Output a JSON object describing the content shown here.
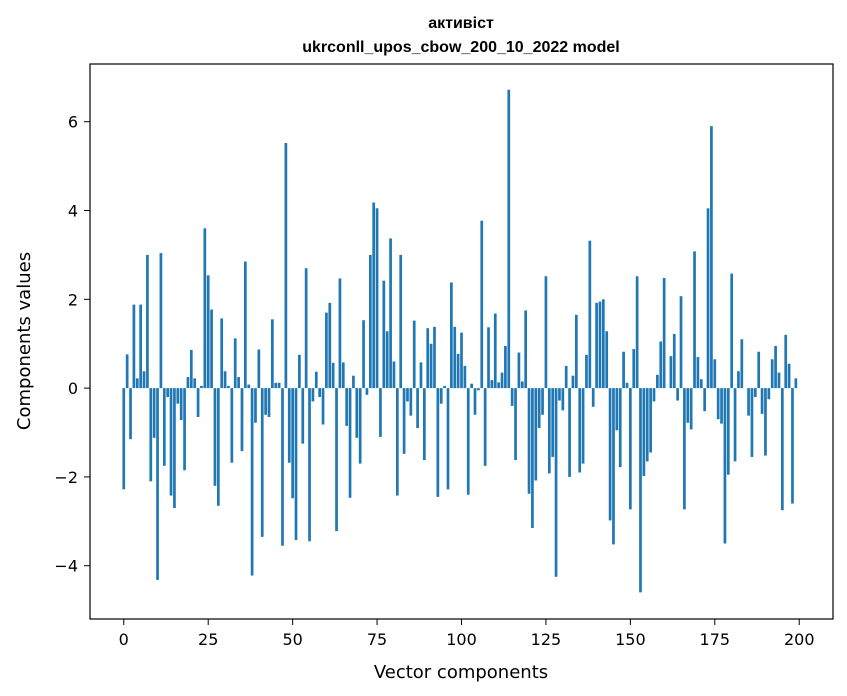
{
  "chart_data": {
    "type": "bar",
    "title": "активіст",
    "subtitle": "ukrconll_upos_cbow_200_10_2022 model",
    "xlabel": "Vector components",
    "ylabel": "Components values",
    "xlim": [
      -10,
      210
    ],
    "ylim": [
      -5.2,
      7.3
    ],
    "xticks": [
      0,
      25,
      50,
      75,
      100,
      125,
      150,
      175,
      200
    ],
    "yticks": [
      -4,
      -2,
      0,
      2,
      4,
      6
    ],
    "ytick_labels": [
      "−4",
      "−2",
      "0",
      "2",
      "4",
      "6"
    ],
    "grid": false,
    "bar_color": "#1f77b4",
    "values": [
      -2.28,
      0.76,
      -1.15,
      1.88,
      0.22,
      1.88,
      0.38,
      3.0,
      -2.1,
      -1.12,
      -4.32,
      3.04,
      -1.75,
      -0.2,
      -2.42,
      -2.7,
      -0.35,
      -0.72,
      -1.85,
      0.25,
      0.86,
      0.22,
      -0.65,
      0.05,
      3.6,
      2.54,
      1.77,
      -2.2,
      -2.65,
      1.57,
      0.38,
      0.05,
      -1.68,
      1.12,
      0.25,
      -1.42,
      2.85,
      0.08,
      -4.22,
      -0.78,
      0.87,
      -3.35,
      -0.6,
      -0.65,
      1.55,
      0.12,
      0.12,
      -3.55,
      5.52,
      -1.68,
      -2.48,
      -3.42,
      0.75,
      -1.25,
      2.7,
      -3.45,
      -0.3,
      0.37,
      -0.2,
      -0.82,
      1.7,
      1.92,
      0.57,
      -3.22,
      2.47,
      0.58,
      -0.85,
      -2.47,
      0.28,
      -1.12,
      -1.7,
      1.53,
      -0.15,
      3.0,
      4.18,
      4.05,
      -1.1,
      2.42,
      1.28,
      3.37,
      0.6,
      -2.42,
      3.0,
      -1.48,
      -0.3,
      -0.62,
      1.52,
      -0.9,
      0.58,
      -1.62,
      1.35,
      1.0,
      1.38,
      -2.45,
      -0.35,
      0.05,
      -2.28,
      2.38,
      1.38,
      0.77,
      1.25,
      0.5,
      -2.4,
      0.1,
      -0.6,
      -0.05,
      3.77,
      -1.75,
      1.37,
      0.18,
      1.68,
      0.13,
      0.35,
      0.95,
      6.72,
      -0.4,
      -1.62,
      0.8,
      0.15,
      1.75,
      -2.38,
      -3.15,
      -2.08,
      -0.9,
      -0.6,
      2.52,
      -1.92,
      -1.55,
      -4.25,
      -0.28,
      -0.5,
      0.5,
      -2.0,
      0.28,
      1.65,
      -1.9,
      -1.7,
      0.75,
      3.32,
      -0.42,
      1.92,
      1.95,
      2.0,
      1.28,
      -2.98,
      -3.52,
      -0.95,
      -1.78,
      0.82,
      0.12,
      -2.73,
      0.88,
      2.52,
      -4.6,
      -1.98,
      -1.65,
      -1.45,
      -0.3,
      0.3,
      1.05,
      2.48,
      0.0,
      0.72,
      1.22,
      -0.28,
      2.07,
      -2.73,
      -0.78,
      -0.93,
      3.08,
      0.7,
      0.2,
      -0.52,
      4.05,
      5.9,
      0.65,
      -0.7,
      -0.8,
      -3.5,
      -1.95,
      2.58,
      -1.65,
      0.38,
      1.1,
      0.0,
      -0.62,
      -1.55,
      -0.2,
      0.82,
      -0.58,
      -1.52,
      -0.25,
      0.65,
      0.95,
      0.35,
      -2.75,
      1.2,
      0.55,
      -2.6,
      0.22
    ]
  }
}
